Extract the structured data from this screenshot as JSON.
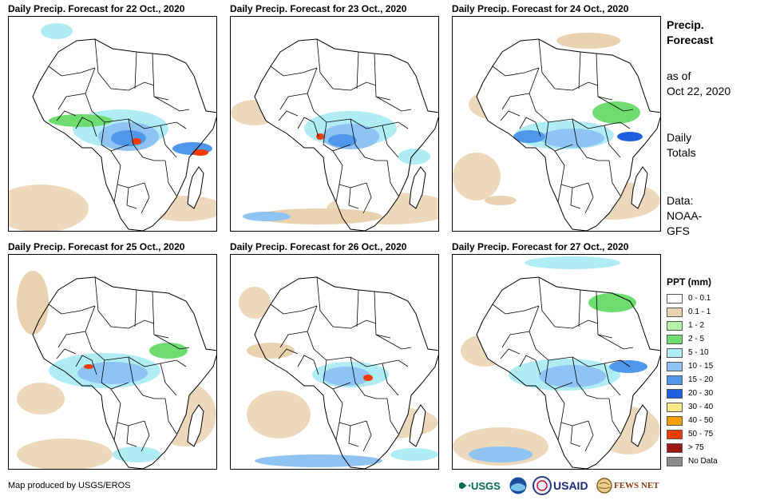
{
  "panels": [
    {
      "title": "Daily Precip. Forecast for 22 Oct., 2020"
    },
    {
      "title": "Daily Precip. Forecast for 23 Oct., 2020"
    },
    {
      "title": "Daily Precip. Forecast for 24 Oct., 2020"
    },
    {
      "title": "Daily Precip. Forecast for 25 Oct., 2020"
    },
    {
      "title": "Daily Precip. Forecast for 26 Oct., 2020"
    },
    {
      "title": "Daily Precip. Forecast for 27 Oct., 2020"
    }
  ],
  "side": {
    "title_line1": "Precip.",
    "title_line2": "Forecast",
    "asof_line1": "as of",
    "asof_line2": "Oct 22, 2020",
    "daily_line1": "Daily",
    "daily_line2": "Totals",
    "data_line1": "Data:",
    "data_line2": "NOAA-",
    "data_line3": "GFS"
  },
  "legend": {
    "title": "PPT (mm)",
    "items": [
      {
        "label": "0 - 0.1",
        "color": "#ffffff"
      },
      {
        "label": "0.1 - 1",
        "color": "#e9d2b0"
      },
      {
        "label": "1 - 2",
        "color": "#b5f0a8"
      },
      {
        "label": "2 - 5",
        "color": "#6fdc6f"
      },
      {
        "label": "5 - 10",
        "color": "#b0ecf3"
      },
      {
        "label": "10 - 15",
        "color": "#8ec3f3"
      },
      {
        "label": "15 - 20",
        "color": "#4f97ea"
      },
      {
        "label": "20 - 30",
        "color": "#1f5fe0"
      },
      {
        "label": "30 - 40",
        "color": "#fde889"
      },
      {
        "label": "40 - 50",
        "color": "#f5a000"
      },
      {
        "label": "50 - 75",
        "color": "#f03c00"
      },
      {
        "label": "> 75",
        "color": "#9a1a12"
      },
      {
        "label": "No Data",
        "color": "#8c8c8c"
      }
    ]
  },
  "footer": {
    "credit": "Map produced by USGS/EROS",
    "logo_usgs": "USGS",
    "logo_usaid": "USAID",
    "logo_fewsnet": "FEWS NET"
  }
}
